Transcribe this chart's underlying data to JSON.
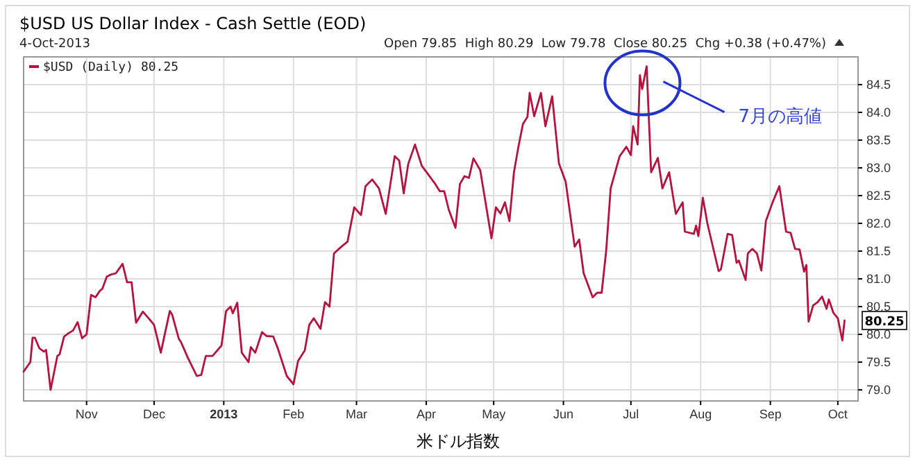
{
  "chart_data": {
    "type": "line",
    "title": "$USD US Dollar Index - Cash Settle (EOD)",
    "subtitle": "4-Oct-2013",
    "xlabel": "米ドル指数",
    "annotations": [
      "Open 79.85  High 80.29  Low 79.78  Close 80.25  Chg +0.38 (+0.47%)",
      "7月の高値",
      {
        "text": "80.25",
        "x": "2013-10-04",
        "y": 80.25
      }
    ],
    "xlim": [
      "2012-10-04",
      "2013-10-10"
    ],
    "xticks": [
      {
        "value": "2012-11-01",
        "label": "Nov"
      },
      {
        "value": "2012-12-01",
        "label": "Dec"
      },
      {
        "value": "2013-01-01",
        "label": "2013"
      },
      {
        "value": "2013-02-01",
        "label": "Feb"
      },
      {
        "value": "2013-03-01",
        "label": "Mar"
      },
      {
        "value": "2013-04-01",
        "label": "Apr"
      },
      {
        "value": "2013-05-01",
        "label": "May"
      },
      {
        "value": "2013-06-01",
        "label": "Jun"
      },
      {
        "value": "2013-07-01",
        "label": "Jul"
      },
      {
        "value": "2013-08-01",
        "label": "Aug"
      },
      {
        "value": "2013-09-01",
        "label": "Sep"
      },
      {
        "value": "2013-10-01",
        "label": "Oct"
      }
    ],
    "ylim": [
      78.8,
      85.0
    ],
    "yticks": [
      {
        "value": 79,
        "label": "79.0"
      },
      79.5,
      {
        "value": 80,
        "label": "80.0"
      },
      80.5,
      {
        "value": 81,
        "label": "81.0"
      },
      81.5,
      {
        "value": 82,
        "label": "82.0"
      },
      82.5,
      {
        "value": 83,
        "label": "83.0"
      },
      83.5,
      {
        "value": 84,
        "label": "84.0"
      },
      84.5
    ],
    "grid": true,
    "legend": "top left",
    "x": [
      "2012-10-04",
      "2012-10-07",
      "2012-10-08",
      "2012-10-09",
      "2012-10-11",
      "2012-10-13",
      "2012-10-14",
      "2012-10-16",
      "2012-10-19",
      "2012-10-20",
      "2012-10-22",
      "2012-10-24",
      "2012-10-26",
      "2012-10-28",
      "2012-10-30",
      "2012-11-01",
      "2012-11-03",
      "2012-11-05",
      "2012-11-07",
      "2012-11-08",
      "2012-11-10",
      "2012-11-12",
      "2012-11-14",
      "2012-11-17",
      "2012-11-19",
      "2012-11-21",
      "2012-11-23",
      "2012-11-26",
      "2012-11-29",
      "2012-12-01",
      "2012-12-04",
      "2012-12-08",
      "2012-12-09",
      "2012-12-12",
      "2012-12-13",
      "2012-12-16",
      "2012-12-20",
      "2012-12-22",
      "2012-12-24",
      "2012-12-27",
      "2012-12-31",
      "2013-01-02",
      "2013-01-04",
      "2013-01-05",
      "2013-01-07",
      "2013-01-09",
      "2013-01-12",
      "2013-01-13",
      "2013-01-15",
      "2013-01-18",
      "2013-01-20",
      "2013-01-23",
      "2013-01-25",
      "2013-01-29",
      "2013-02-01",
      "2013-02-03",
      "2013-02-06",
      "2013-02-08",
      "2013-02-10",
      "2013-02-13",
      "2013-02-15",
      "2013-02-17",
      "2013-02-19",
      "2013-02-22",
      "2013-02-25",
      "2013-02-28",
      "2013-03-03",
      "2013-03-05",
      "2013-03-08",
      "2013-03-11",
      "2013-03-14",
      "2013-03-18",
      "2013-03-20",
      "2013-03-22",
      "2013-03-24",
      "2013-03-27",
      "2013-03-30",
      "2013-04-01",
      "2013-04-05",
      "2013-04-07",
      "2013-04-09",
      "2013-04-11",
      "2013-04-14",
      "2013-04-16",
      "2013-04-18",
      "2013-04-20",
      "2013-04-22",
      "2013-04-25",
      "2013-04-30",
      "2013-05-02",
      "2013-05-04",
      "2013-05-06",
      "2013-05-08",
      "2013-05-10",
      "2013-05-12",
      "2013-05-14",
      "2013-05-16",
      "2013-05-17",
      "2013-05-19",
      "2013-05-22",
      "2013-05-24",
      "2013-05-27",
      "2013-05-30",
      "2013-06-02",
      "2013-06-06",
      "2013-06-08",
      "2013-06-10",
      "2013-06-14",
      "2013-06-16",
      "2013-06-18",
      "2013-06-20",
      "2013-06-22",
      "2013-06-26",
      "2013-06-29",
      "2013-07-01",
      "2013-07-02",
      "2013-07-04",
      "2013-07-05",
      "2013-07-06",
      "2013-07-08",
      "2013-07-10",
      "2013-07-13",
      "2013-07-15",
      "2013-07-18",
      "2013-07-21",
      "2013-07-24",
      "2013-07-25",
      "2013-07-29",
      "2013-07-30",
      "2013-07-31",
      "2013-08-02",
      "2013-08-04",
      "2013-08-09",
      "2013-08-10",
      "2013-08-13",
      "2013-08-15",
      "2013-08-17",
      "2013-08-18",
      "2013-08-21",
      "2013-08-22",
      "2013-08-24",
      "2013-08-26",
      "2013-08-28",
      "2013-08-30",
      "2013-09-02",
      "2013-09-05",
      "2013-09-08",
      "2013-09-10",
      "2013-09-12",
      "2013-09-14",
      "2013-09-16",
      "2013-09-17",
      "2013-09-18",
      "2013-09-20",
      "2013-09-22",
      "2013-09-24",
      "2013-09-26",
      "2013-09-27",
      "2013-09-29",
      "2013-10-01",
      "2013-10-03",
      "2013-10-04"
    ],
    "series": [
      {
        "name": "$USD (Daily) 80.25",
        "color": "#b5123e",
        "values": [
          79.33,
          79.5,
          79.94,
          79.94,
          79.75,
          79.69,
          79.72,
          79.0,
          79.61,
          79.64,
          79.96,
          80.02,
          80.07,
          80.22,
          79.93,
          80.0,
          80.71,
          80.67,
          80.79,
          80.82,
          81.04,
          81.08,
          81.1,
          81.27,
          80.94,
          80.94,
          80.21,
          80.41,
          80.27,
          80.17,
          79.67,
          80.42,
          80.36,
          79.92,
          79.86,
          79.58,
          79.25,
          79.27,
          79.61,
          79.61,
          79.8,
          80.42,
          80.5,
          80.38,
          80.57,
          79.67,
          79.5,
          79.77,
          79.67,
          80.04,
          79.97,
          79.96,
          79.75,
          79.25,
          79.1,
          79.52,
          79.71,
          80.17,
          80.29,
          80.1,
          80.58,
          80.5,
          81.46,
          81.57,
          81.67,
          82.29,
          82.15,
          82.67,
          82.79,
          82.63,
          82.17,
          83.21,
          83.13,
          82.54,
          83.07,
          83.42,
          83.04,
          82.93,
          82.71,
          82.58,
          82.58,
          82.25,
          81.92,
          82.71,
          82.85,
          82.82,
          83.17,
          82.96,
          81.73,
          82.29,
          82.18,
          82.38,
          82.04,
          82.92,
          83.38,
          83.79,
          83.92,
          84.35,
          83.93,
          84.35,
          83.75,
          84.29,
          83.08,
          82.75,
          81.58,
          81.71,
          81.1,
          80.67,
          80.75,
          80.75,
          81.5,
          82.63,
          83.21,
          83.38,
          83.23,
          83.75,
          83.42,
          84.67,
          84.42,
          84.83,
          82.92,
          83.18,
          82.63,
          82.92,
          82.17,
          82.38,
          81.85,
          81.81,
          81.96,
          81.77,
          82.46,
          82.0,
          81.14,
          81.17,
          81.81,
          81.79,
          81.29,
          81.33,
          80.98,
          81.46,
          81.54,
          81.46,
          81.15,
          82.04,
          82.38,
          82.67,
          81.85,
          81.83,
          81.54,
          81.53,
          81.13,
          81.25,
          80.23,
          80.52,
          80.58,
          80.68,
          80.46,
          80.63,
          80.39,
          80.29,
          79.89,
          80.25
        ]
      }
    ]
  }
}
